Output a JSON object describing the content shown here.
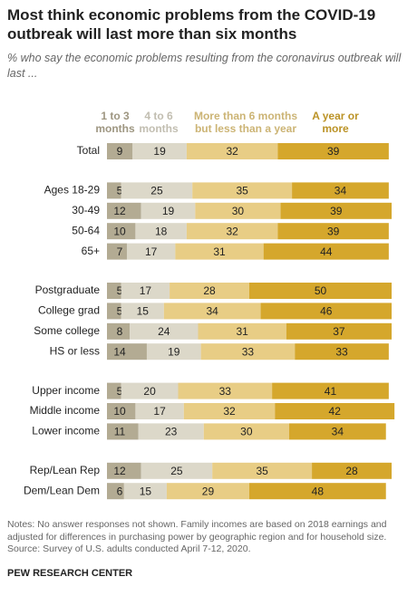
{
  "chart_data": {
    "type": "stacked-bar",
    "title": "Most think economic problems from the COVID-19 outbreak will last more than six months",
    "subtitle": "% who say the economic problems resulting from the coronavirus outbreak will last ...",
    "categories": [
      "Total",
      "Ages 18-29",
      "30-49",
      "50-64",
      "65+",
      "Postgraduate",
      "College grad",
      "Some college",
      "HS or less",
      "Upper income",
      "Middle income",
      "Lower income",
      "Rep/Lean Rep",
      "Dem/Lean Dem"
    ],
    "series": [
      {
        "name": "1 to 3 months",
        "color": "#b3ab93",
        "values": [
          9,
          5,
          12,
          10,
          7,
          5,
          5,
          8,
          14,
          5,
          10,
          11,
          12,
          6
        ]
      },
      {
        "name": "4 to 6 months",
        "color": "#dcd8c9",
        "values": [
          19,
          25,
          19,
          18,
          17,
          17,
          15,
          24,
          19,
          20,
          17,
          23,
          25,
          15
        ]
      },
      {
        "name": "More than 6 months but less than a year",
        "color": "#e8cd85",
        "values": [
          32,
          35,
          30,
          32,
          31,
          28,
          34,
          31,
          33,
          33,
          32,
          30,
          35,
          29
        ]
      },
      {
        "name": "A year or more",
        "color": "#d5a72c",
        "values": [
          39,
          34,
          39,
          39,
          44,
          50,
          46,
          37,
          33,
          41,
          42,
          34,
          28,
          48
        ]
      }
    ],
    "xlim": [
      0,
      100
    ],
    "notes": "Notes: No answer responses not shown. Family incomes are based on 2018 earnings and adjusted for differences in purchasing power by geographic region and for household size.",
    "source": "Source: Survey of U.S. adults conducted April 7-12, 2020.",
    "footer": "PEW RESEARCH CENTER"
  }
}
